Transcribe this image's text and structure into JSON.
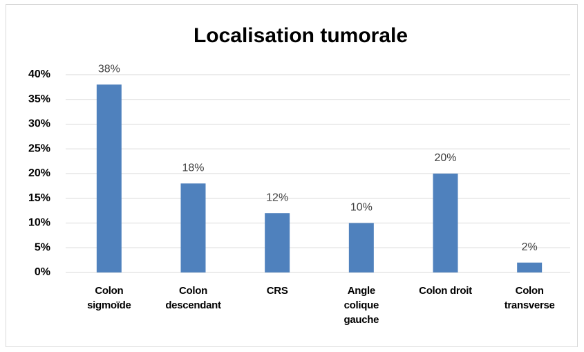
{
  "chart_data": {
    "type": "bar",
    "title": "Localisation tumorale",
    "categories": [
      "Colon\nsigmoïde",
      "Colon\ndescendant",
      "CRS",
      "Angle\ncolique\ngauche",
      "Colon droit",
      "Colon\ntransverse"
    ],
    "values": [
      38,
      18,
      12,
      10,
      20,
      2
    ],
    "value_labels": [
      "38%",
      "18%",
      "12%",
      "10%",
      "20%",
      "2%"
    ],
    "color": "#4f81bd",
    "ylim": [
      0,
      40
    ],
    "yticks": [
      {
        "value": 0,
        "label": "0%"
      },
      {
        "value": 5,
        "label": "5%"
      },
      {
        "value": 10,
        "label": "10%"
      },
      {
        "value": 15,
        "label": "15%"
      },
      {
        "value": 20,
        "label": "20%"
      },
      {
        "value": 25,
        "label": "25%"
      },
      {
        "value": 30,
        "label": "30%"
      },
      {
        "value": 35,
        "label": "35%"
      },
      {
        "value": 40,
        "label": "40%"
      }
    ],
    "grid": true
  }
}
